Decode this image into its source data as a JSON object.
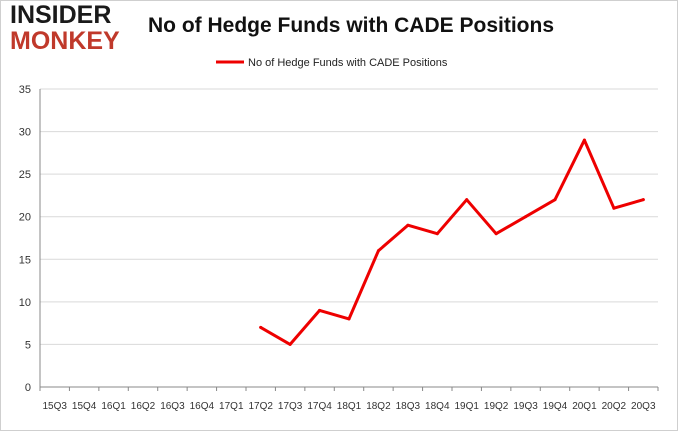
{
  "logo": {
    "line1": "INSIDER",
    "line2": "MONKEY"
  },
  "chart_data": {
    "type": "line",
    "title": "No of Hedge Funds with CADE Positions",
    "xlabel": "",
    "ylabel": "",
    "categories": [
      "15Q3",
      "15Q4",
      "16Q1",
      "16Q2",
      "16Q3",
      "16Q4",
      "17Q1",
      "17Q2",
      "17Q3",
      "17Q4",
      "18Q1",
      "18Q2",
      "18Q3",
      "18Q4",
      "19Q1",
      "19Q2",
      "19Q3",
      "19Q4",
      "20Q1",
      "20Q2",
      "20Q3"
    ],
    "tick_label_text": "15Q315Q416Q116Q216Q316Q417Q117Q217Q317Q418Q118Q218Q318Q419Q119Q219Q319Q420Q120Q220Q3",
    "series": [
      {
        "name": "No of Hedge Funds with CADE Positions",
        "color": "#ee0000",
        "values": [
          null,
          null,
          null,
          null,
          null,
          null,
          null,
          7,
          5,
          9,
          8,
          16,
          19,
          18,
          22,
          18,
          20,
          22,
          29,
          21,
          22
        ]
      }
    ],
    "ylim": [
      0,
      35
    ],
    "yticks": [
      0,
      5,
      10,
      15,
      20,
      25,
      30,
      35
    ],
    "grid": true,
    "legend": "top-center"
  }
}
